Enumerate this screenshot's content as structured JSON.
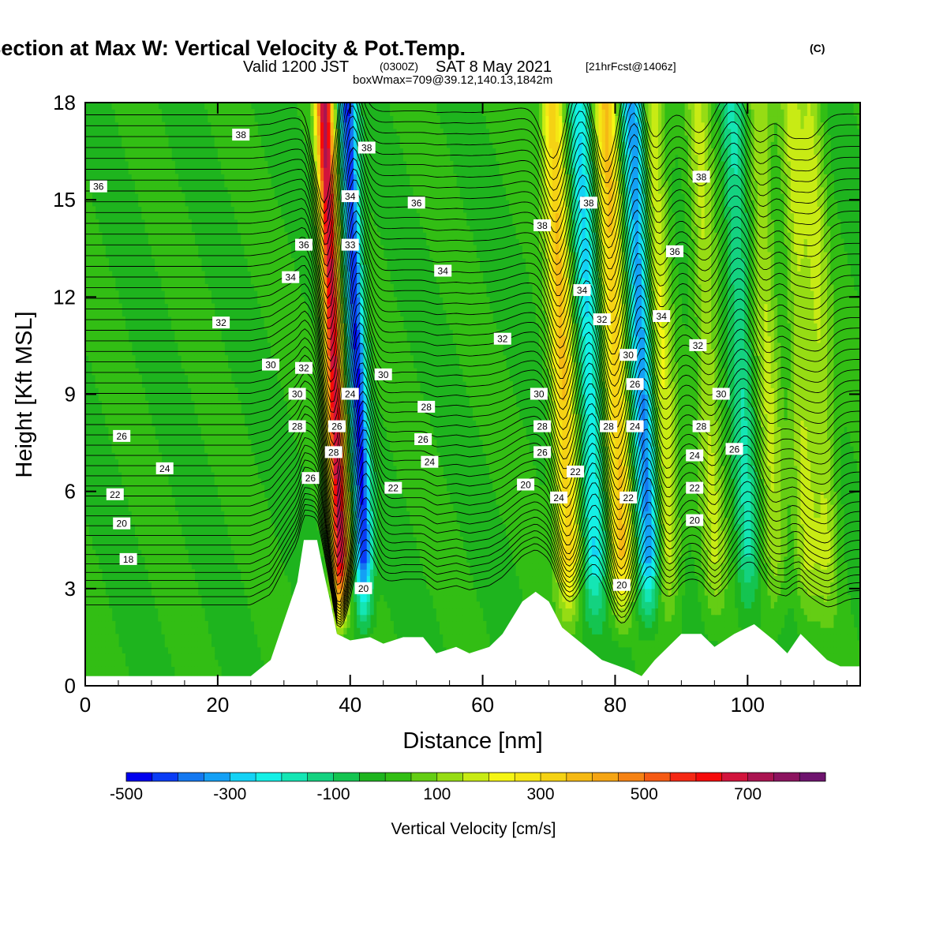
{
  "title": {
    "main": "Wind-Parallel Section at Max W: Vertical Velocity & Pot.Temp.",
    "copyright": "(C)",
    "valid_prefix": "Valid 1200 JST",
    "utc": "(0300Z)",
    "valid_date": "SAT 8 May 2021",
    "forecast": "[21hrFcst@1406z]",
    "boxmax": "boxWmax=709@39.12,140.13,1842m"
  },
  "chart_data": {
    "type": "heatmap",
    "xlabel": "Distance [nm]",
    "ylabel": "Height [Kft MSL]",
    "xlim": [
      0,
      117
    ],
    "ylim": [
      0,
      18
    ],
    "x_ticks": [
      0,
      20,
      40,
      60,
      80,
      100
    ],
    "y_ticks": [
      0,
      3,
      6,
      9,
      12,
      15,
      18
    ],
    "colorbar": {
      "label": "Vertical Velocity [cm/s]",
      "tick_labels": [
        "-500",
        "-300",
        "-100",
        "100",
        "300",
        "500",
        "700"
      ],
      "tick_values": [
        -500,
        -300,
        -100,
        100,
        300,
        500,
        700
      ],
      "levels": [
        -500,
        -450,
        -400,
        -350,
        -300,
        -250,
        -200,
        -150,
        -100,
        -50,
        0,
        50,
        100,
        150,
        200,
        250,
        300,
        350,
        400,
        450,
        500,
        550,
        600,
        650,
        700,
        750,
        800,
        850
      ],
      "colors": [
        "#0000ee",
        "#0a3cf5",
        "#1478f0",
        "#14a0f5",
        "#14d2f5",
        "#14f0e6",
        "#14e6b4",
        "#14d280",
        "#14c450",
        "#1eb41e",
        "#32be14",
        "#64cd14",
        "#96dc14",
        "#c8eb14",
        "#f5f514",
        "#f5e614",
        "#f5d214",
        "#f5b914",
        "#f5a514",
        "#f58214",
        "#f55a14",
        "#f52814",
        "#f50a0a",
        "#d2143c",
        "#aa1450",
        "#8c145f",
        "#6e146e"
      ]
    },
    "w_features": [
      {
        "x": 38.5,
        "w": 700,
        "note": "updraft core"
      },
      {
        "x": 42,
        "w": -450,
        "note": "downdraft core"
      },
      {
        "x": 73,
        "w": 350
      },
      {
        "x": 77,
        "w": -250
      },
      {
        "x": 81,
        "w": 350
      },
      {
        "x": 85,
        "w": -350
      },
      {
        "x": 88,
        "w": 200
      },
      {
        "x": 95,
        "w": 150
      },
      {
        "x": 100,
        "w": -150
      },
      {
        "x": 104,
        "w": 150
      },
      {
        "x": 109,
        "w": 150
      },
      {
        "x": 112,
        "w": 150
      }
    ],
    "terrain": [
      [
        0,
        0.3
      ],
      [
        25,
        0.3
      ],
      [
        28,
        0.8
      ],
      [
        30,
        2.0
      ],
      [
        32,
        3.2
      ],
      [
        33,
        4.5
      ],
      [
        35,
        4.5
      ],
      [
        36,
        3.5
      ],
      [
        37,
        2.6
      ],
      [
        38,
        1.6
      ],
      [
        40,
        1.4
      ],
      [
        43,
        1.5
      ],
      [
        45,
        1.3
      ],
      [
        48,
        1.5
      ],
      [
        51,
        1.5
      ],
      [
        53,
        1.0
      ],
      [
        56,
        1.2
      ],
      [
        58,
        1.0
      ],
      [
        61,
        1.2
      ],
      [
        63,
        1.6
      ],
      [
        66,
        2.6
      ],
      [
        68,
        2.9
      ],
      [
        70,
        2.6
      ],
      [
        72,
        1.8
      ],
      [
        75,
        1.3
      ],
      [
        78,
        0.8
      ],
      [
        82,
        0.5
      ],
      [
        84,
        0.3
      ],
      [
        86,
        0.8
      ],
      [
        88,
        1.2
      ],
      [
        90,
        1.6
      ],
      [
        93,
        1.6
      ],
      [
        95,
        1.2
      ],
      [
        98,
        1.6
      ],
      [
        101,
        1.9
      ],
      [
        104,
        1.4
      ],
      [
        106,
        1.0
      ],
      [
        108,
        1.6
      ],
      [
        110,
        1.2
      ],
      [
        112,
        0.8
      ],
      [
        114,
        0.6
      ],
      [
        117,
        0.6
      ]
    ],
    "theta_labels": [
      {
        "x": 23.5,
        "y": 17.0,
        "text": "38"
      },
      {
        "x": 2.0,
        "y": 15.4,
        "text": "36"
      },
      {
        "x": 42.5,
        "y": 16.6,
        "text": "38"
      },
      {
        "x": 40.0,
        "y": 15.1,
        "text": "34"
      },
      {
        "x": 50.0,
        "y": 14.9,
        "text": "36"
      },
      {
        "x": 40.0,
        "y": 13.6,
        "text": "33"
      },
      {
        "x": 33.0,
        "y": 13.6,
        "text": "36"
      },
      {
        "x": 31.0,
        "y": 12.6,
        "text": "34"
      },
      {
        "x": 54.0,
        "y": 12.8,
        "text": "34"
      },
      {
        "x": 69.0,
        "y": 14.2,
        "text": "38"
      },
      {
        "x": 76.0,
        "y": 14.9,
        "text": "38"
      },
      {
        "x": 93.0,
        "y": 15.7,
        "text": "38"
      },
      {
        "x": 89.0,
        "y": 13.4,
        "text": "36"
      },
      {
        "x": 20.5,
        "y": 11.2,
        "text": "32"
      },
      {
        "x": 75.0,
        "y": 12.2,
        "text": "34"
      },
      {
        "x": 87.0,
        "y": 11.4,
        "text": "34"
      },
      {
        "x": 63.0,
        "y": 10.7,
        "text": "32"
      },
      {
        "x": 78.0,
        "y": 11.3,
        "text": "32"
      },
      {
        "x": 92.5,
        "y": 10.5,
        "text": "32"
      },
      {
        "x": 28.0,
        "y": 9.9,
        "text": "30"
      },
      {
        "x": 33.0,
        "y": 9.8,
        "text": "32"
      },
      {
        "x": 45.0,
        "y": 9.6,
        "text": "30"
      },
      {
        "x": 82.0,
        "y": 10.2,
        "text": "30"
      },
      {
        "x": 32.0,
        "y": 9.0,
        "text": "30"
      },
      {
        "x": 40.0,
        "y": 9.0,
        "text": "24"
      },
      {
        "x": 68.5,
        "y": 9.0,
        "text": "30"
      },
      {
        "x": 83.0,
        "y": 9.3,
        "text": "26"
      },
      {
        "x": 96.0,
        "y": 9.0,
        "text": "30"
      },
      {
        "x": 51.5,
        "y": 8.6,
        "text": "28"
      },
      {
        "x": 32.0,
        "y": 8.0,
        "text": "28"
      },
      {
        "x": 38.0,
        "y": 8.0,
        "text": "26"
      },
      {
        "x": 69.0,
        "y": 8.0,
        "text": "28"
      },
      {
        "x": 79.0,
        "y": 8.0,
        "text": "28"
      },
      {
        "x": 83.0,
        "y": 8.0,
        "text": "24"
      },
      {
        "x": 93.0,
        "y": 8.0,
        "text": "28"
      },
      {
        "x": 5.5,
        "y": 7.7,
        "text": "26"
      },
      {
        "x": 51.0,
        "y": 7.6,
        "text": "26"
      },
      {
        "x": 98.0,
        "y": 7.3,
        "text": "26"
      },
      {
        "x": 37.5,
        "y": 7.2,
        "text": "28"
      },
      {
        "x": 69.0,
        "y": 7.2,
        "text": "26"
      },
      {
        "x": 52.0,
        "y": 6.9,
        "text": "24"
      },
      {
        "x": 92.0,
        "y": 7.1,
        "text": "24"
      },
      {
        "x": 12.0,
        "y": 6.7,
        "text": "24"
      },
      {
        "x": 74.0,
        "y": 6.6,
        "text": "22"
      },
      {
        "x": 34.0,
        "y": 6.4,
        "text": "26"
      },
      {
        "x": 66.5,
        "y": 6.2,
        "text": "20"
      },
      {
        "x": 46.5,
        "y": 6.1,
        "text": "22"
      },
      {
        "x": 92.0,
        "y": 6.1,
        "text": "22"
      },
      {
        "x": 4.5,
        "y": 5.9,
        "text": "22"
      },
      {
        "x": 71.5,
        "y": 5.8,
        "text": "24"
      },
      {
        "x": 82.0,
        "y": 5.8,
        "text": "22"
      },
      {
        "x": 5.5,
        "y": 5.0,
        "text": "20"
      },
      {
        "x": 92.0,
        "y": 5.1,
        "text": "20"
      },
      {
        "x": 6.5,
        "y": 3.9,
        "text": "18"
      },
      {
        "x": 81.0,
        "y": 3.1,
        "text": "20"
      },
      {
        "x": 42.0,
        "y": 3.0,
        "text": "20"
      }
    ]
  }
}
